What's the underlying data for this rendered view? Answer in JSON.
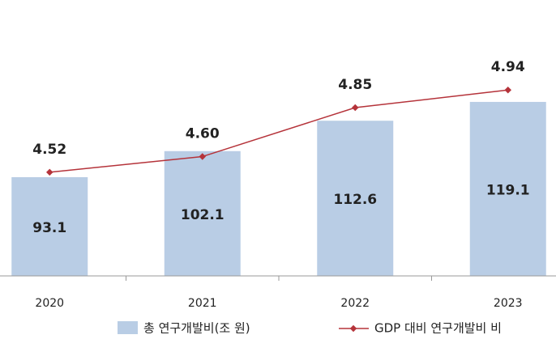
{
  "chart_data": {
    "type": "bar",
    "categories": [
      "2020",
      "2021",
      "2022",
      "2023"
    ],
    "series": [
      {
        "name": "총 연구개발비(조 원)",
        "color": "#b9cde5",
        "values": [
          93.1,
          102.1,
          112.6,
          119.1
        ]
      },
      {
        "name": "GDP 대비 연구개발비 비",
        "color": "#b5333a",
        "axis": "y2",
        "type": "line",
        "values": [
          4.52,
          4.6,
          4.85,
          4.94
        ],
        "value_labels": [
          "4.52",
          "4.60",
          "4.85",
          "4.94"
        ]
      }
    ],
    "ylim": [
      59,
      154.3
    ],
    "y2lim": [
      3.99,
      5.4
    ]
  }
}
